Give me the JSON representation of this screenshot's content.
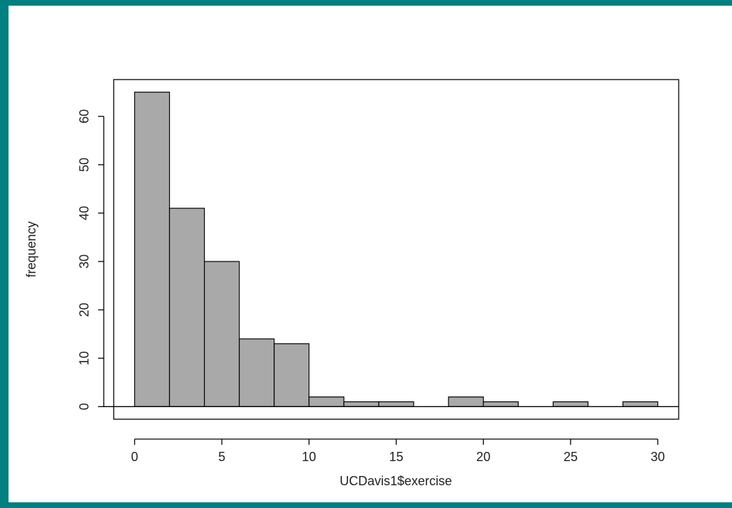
{
  "chart_data": {
    "type": "histogram",
    "xlabel": "UCDavis1$exercise",
    "ylabel": "frequency",
    "bins": [
      0,
      2,
      4,
      6,
      8,
      10,
      12,
      14,
      16,
      18,
      20,
      22,
      24,
      26,
      28,
      30
    ],
    "values": [
      65,
      41,
      30,
      14,
      13,
      2,
      1,
      1,
      0,
      2,
      1,
      0,
      1,
      0,
      1
    ],
    "color": "#a9a9a9",
    "xlim": [
      -1.2,
      31.2
    ],
    "ylim": [
      -2.6,
      67.6
    ],
    "xticks": [
      0,
      5,
      10,
      15,
      20,
      25,
      30
    ],
    "yticks": [
      0,
      10,
      20,
      30,
      40,
      50,
      60
    ]
  }
}
